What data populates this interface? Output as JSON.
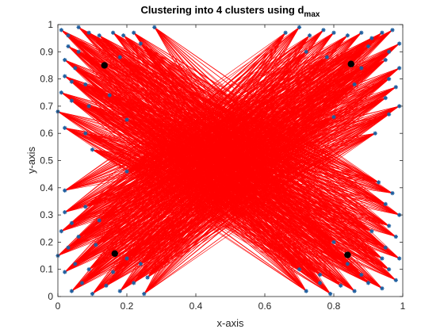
{
  "chart_data": {
    "type": "scatter",
    "title": "Clustering into 4 clusters using d",
    "title_subscript": "max",
    "xlabel": "x-axis",
    "ylabel": "y-axis",
    "xlim": [
      0,
      1
    ],
    "ylim": [
      0,
      1
    ],
    "xticks": [
      "0",
      "0.2",
      "0.4",
      "0.6",
      "0.8",
      "1"
    ],
    "yticks": [
      "0",
      "0.1",
      "0.2",
      "0.3",
      "0.4",
      "0.5",
      "0.6",
      "0.7",
      "0.8",
      "0.9",
      "1"
    ],
    "xtick_values": [
      0,
      0.2,
      0.4,
      0.6,
      0.8,
      1
    ],
    "ytick_values": [
      0,
      0.1,
      0.2,
      0.3,
      0.4,
      0.5,
      0.6,
      0.7,
      0.8,
      0.9,
      1
    ],
    "grid": false,
    "colors": {
      "points": "#1f5f9f",
      "links": "#ff0000",
      "centroids": "#000000",
      "axes": "#262626"
    },
    "centroids": [
      {
        "x": 0.135,
        "y": 0.85
      },
      {
        "x": 0.85,
        "y": 0.855
      },
      {
        "x": 0.165,
        "y": 0.158
      },
      {
        "x": 0.84,
        "y": 0.153
      }
    ],
    "points": [
      [
        0.01,
        0.98
      ],
      [
        0.03,
        0.96
      ],
      [
        0.06,
        0.99
      ],
      [
        0.09,
        0.97
      ],
      [
        0.12,
        0.96
      ],
      [
        0.16,
        0.97
      ],
      [
        0.19,
        0.96
      ],
      [
        0.22,
        0.97
      ],
      [
        0.03,
        0.92
      ],
      [
        0.06,
        0.9
      ],
      [
        0.02,
        0.87
      ],
      [
        0.05,
        0.84
      ],
      [
        0.02,
        0.81
      ],
      [
        0.08,
        0.78
      ],
      [
        0.01,
        0.75
      ],
      [
        0.04,
        0.72
      ],
      [
        0.0,
        0.68
      ],
      [
        0.09,
        0.7
      ],
      [
        0.15,
        0.74
      ],
      [
        0.18,
        0.88
      ],
      [
        0.24,
        0.93
      ],
      [
        0.28,
        0.99
      ],
      [
        0.04,
        0.79
      ],
      [
        0.02,
        0.62
      ],
      [
        0.08,
        0.6
      ],
      [
        0.2,
        0.65
      ],
      [
        0.1,
        0.54
      ],
      [
        0.2,
        0.46
      ],
      [
        0.02,
        0.39
      ],
      [
        0.66,
        0.97
      ],
      [
        0.7,
        0.99
      ],
      [
        0.73,
        0.96
      ],
      [
        0.77,
        0.98
      ],
      [
        0.8,
        0.97
      ],
      [
        0.84,
        0.96
      ],
      [
        0.88,
        0.97
      ],
      [
        0.91,
        0.95
      ],
      [
        0.94,
        0.97
      ],
      [
        0.97,
        0.98
      ],
      [
        0.99,
        0.93
      ],
      [
        0.96,
        0.9
      ],
      [
        0.95,
        0.87
      ],
      [
        0.99,
        0.84
      ],
      [
        0.96,
        0.8
      ],
      [
        0.98,
        0.77
      ],
      [
        0.95,
        0.73
      ],
      [
        0.99,
        0.7
      ],
      [
        0.96,
        0.67
      ],
      [
        0.9,
        0.92
      ],
      [
        0.78,
        0.88
      ],
      [
        0.86,
        0.78
      ],
      [
        0.72,
        0.9
      ],
      [
        0.92,
        0.6
      ],
      [
        0.8,
        0.66
      ],
      [
        0.88,
        0.84
      ],
      [
        0.02,
        0.31
      ],
      [
        0.04,
        0.27
      ],
      [
        0.01,
        0.24
      ],
      [
        0.06,
        0.22
      ],
      [
        0.03,
        0.18
      ],
      [
        0.0,
        0.15
      ],
      [
        0.05,
        0.12
      ],
      [
        0.02,
        0.09
      ],
      [
        0.07,
        0.05
      ],
      [
        0.04,
        0.02
      ],
      [
        0.1,
        0.01
      ],
      [
        0.14,
        0.04
      ],
      [
        0.18,
        0.02
      ],
      [
        0.22,
        0.05
      ],
      [
        0.25,
        0.01
      ],
      [
        0.08,
        0.33
      ],
      [
        0.12,
        0.28
      ],
      [
        0.16,
        0.09
      ],
      [
        0.2,
        0.14
      ],
      [
        0.26,
        0.07
      ],
      [
        0.11,
        0.19
      ],
      [
        0.24,
        0.12
      ],
      [
        0.09,
        0.1
      ],
      [
        0.72,
        0.02
      ],
      [
        0.76,
        0.05
      ],
      [
        0.79,
        0.01
      ],
      [
        0.82,
        0.04
      ],
      [
        0.86,
        0.02
      ],
      [
        0.9,
        0.05
      ],
      [
        0.94,
        0.03
      ],
      [
        0.98,
        0.06
      ],
      [
        0.96,
        0.1
      ],
      [
        0.99,
        0.14
      ],
      [
        0.95,
        0.18
      ],
      [
        0.98,
        0.22
      ],
      [
        0.96,
        0.26
      ],
      [
        0.99,
        0.3
      ],
      [
        0.95,
        0.34
      ],
      [
        0.97,
        0.38
      ],
      [
        0.93,
        0.42
      ],
      [
        0.88,
        0.08
      ],
      [
        0.84,
        0.12
      ],
      [
        0.8,
        0.2
      ],
      [
        0.76,
        0.08
      ],
      [
        0.91,
        0.24
      ],
      [
        0.7,
        0.1
      ],
      [
        0.94,
        0.14
      ]
    ]
  }
}
